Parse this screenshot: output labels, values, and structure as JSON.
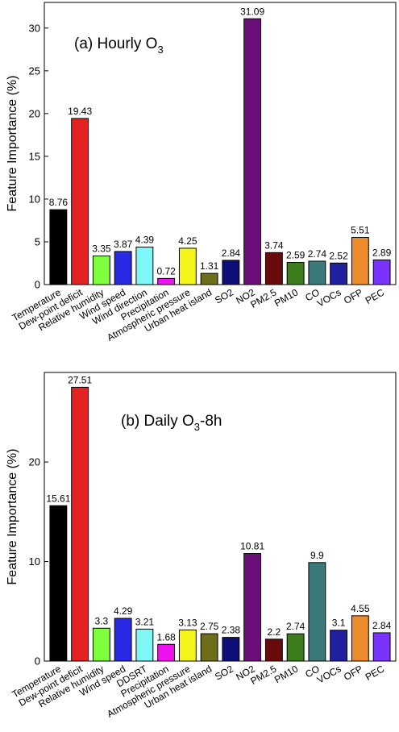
{
  "chart_data": [
    {
      "type": "bar",
      "title": "(a) Hourly O3",
      "title_main": "(a) Hourly O",
      "title_sub": "3",
      "title_tail": "",
      "ylabel": "Feature Importance (%)",
      "ylim": [
        0,
        33
      ],
      "yticks": [
        0,
        5,
        10,
        15,
        20,
        25,
        30
      ],
      "categories": [
        "Temperature",
        "Dew-point deficit",
        "Relative humidity",
        "Wind speed",
        "Wind direction",
        "Precipitation",
        "Atmospheric pressure",
        "Urban heat island",
        "SO2",
        "NO2",
        "PM2.5",
        "PM10",
        "CO",
        "VOCs",
        "OFP",
        "PEC"
      ],
      "values": [
        8.76,
        19.43,
        3.35,
        3.87,
        4.39,
        0.72,
        4.25,
        1.31,
        2.84,
        31.09,
        3.74,
        2.59,
        2.74,
        2.52,
        5.51,
        2.89
      ],
      "value_labels": [
        "8.76",
        "19.43",
        "3.35",
        "3.87",
        "4.39",
        "0.72",
        "4.25",
        "1.31",
        "2.84",
        "31.09",
        "3.74",
        "2.59",
        "2.74",
        "2.52",
        "5.51",
        "2.89"
      ],
      "colors": [
        "#000000",
        "#e32222",
        "#80ff40",
        "#2a2ae6",
        "#7ff7f7",
        "#ee13ee",
        "#f5f51a",
        "#6e6e1a",
        "#0f0f7a",
        "#6a0f78",
        "#6a0a0a",
        "#3c7d1c",
        "#3c7a7a",
        "#1f1fa0",
        "#ee8a2e",
        "#7a33ff"
      ],
      "grid": false
    },
    {
      "type": "bar",
      "title": "(b) Daily O3-8h",
      "title_main": "(b) Daily O",
      "title_sub": "3",
      "title_tail": "-8h",
      "ylabel": "Feature Importance (%)",
      "ylim": [
        0,
        29
      ],
      "yticks": [
        0,
        10,
        20
      ],
      "categories": [
        "Temperature",
        "Dew-point deficit",
        "Relative humidity",
        "Wind speed",
        "DDSRT",
        "Precipitation",
        "Atmospheric pressure",
        "Urban heat island",
        "SO2",
        "NO2",
        "PM2.5",
        "PM10",
        "CO",
        "VOCs",
        "OFP",
        "PEC"
      ],
      "values": [
        15.61,
        27.51,
        3.3,
        4.29,
        3.21,
        1.68,
        3.13,
        2.75,
        2.38,
        10.81,
        2.2,
        2.74,
        9.9,
        3.1,
        4.55,
        2.84
      ],
      "value_labels": [
        "15.61",
        "27.51",
        "3.3",
        "4.29",
        "3.21",
        "1.68",
        "3.13",
        "2.75",
        "2.38",
        "10.81",
        "2.2",
        "2.74",
        "9.9",
        "3.1",
        "4.55",
        "2.84"
      ],
      "colors": [
        "#000000",
        "#e32222",
        "#80ff40",
        "#2a2ae6",
        "#7ff7f7",
        "#ee13ee",
        "#f5f51a",
        "#6e6e1a",
        "#0f0f7a",
        "#6a0f78",
        "#6a0a0a",
        "#3c7d1c",
        "#3c7a7a",
        "#1f1fa0",
        "#ee8a2e",
        "#7a33ff"
      ],
      "grid": false
    }
  ]
}
